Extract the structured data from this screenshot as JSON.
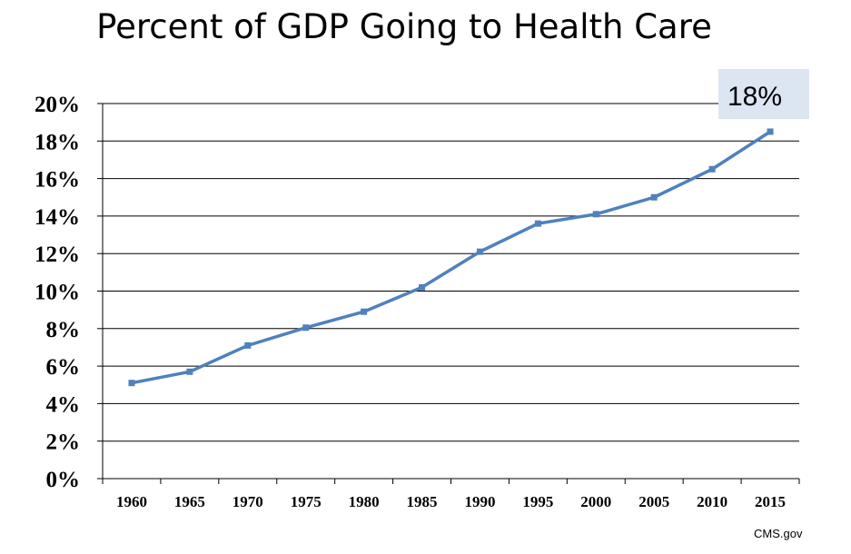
{
  "chart_data": {
    "type": "line",
    "title": "Percent of GDP Going to Health Care",
    "categories": [
      "1960",
      "1965",
      "1970",
      "1975",
      "1980",
      "1985",
      "1990",
      "1995",
      "2000",
      "2005",
      "2010",
      "2015"
    ],
    "series": [
      {
        "values": [
          5.1,
          5.7,
          7.1,
          8.05,
          8.9,
          10.2,
          12.1,
          13.6,
          14.1,
          15.0,
          16.5,
          18.5
        ]
      }
    ],
    "y_ticks": [
      "0%",
      "2%",
      "4%",
      "6%",
      "8%",
      "10%",
      "12%",
      "14%",
      "16%",
      "18%",
      "20%"
    ],
    "ylim": [
      0,
      20
    ],
    "grid": true,
    "annotation": {
      "text": "18%"
    },
    "source": "CMS.gov",
    "colors": {
      "line": "#4f81bd",
      "gridline": "#000000",
      "annotation_bg": "#dce6f2"
    }
  }
}
